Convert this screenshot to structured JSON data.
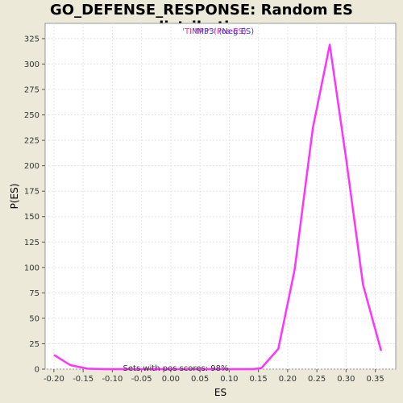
{
  "chart_data": {
    "type": "line",
    "title": "GO_DEFENSE_RESPONSE: Random ES distribution",
    "xlabel": "ES",
    "ylabel": "P(ES)",
    "xlim": [
      -0.215,
      0.385
    ],
    "ylim": [
      0,
      340
    ],
    "x_ticks": [
      "-0.20",
      "-0.15",
      "-0.10",
      "-0.05",
      "0.00",
      "0.05",
      "0.10",
      "0.15",
      "0.20",
      "0.25",
      "0.30",
      "0.35"
    ],
    "x_tick_values": [
      -0.2,
      -0.15,
      -0.1,
      -0.05,
      0.0,
      0.05,
      0.1,
      0.15,
      0.2,
      0.25,
      0.3,
      0.35
    ],
    "y_ticks": [
      "0",
      "25",
      "50",
      "75",
      "100",
      "125",
      "150",
      "175",
      "200",
      "225",
      "250",
      "275",
      "300",
      "325"
    ],
    "y_tick_values": [
      0,
      25,
      50,
      75,
      100,
      125,
      150,
      175,
      200,
      225,
      250,
      275,
      300,
      325
    ],
    "grid": true,
    "series": [
      {
        "color": "#ff33ff",
        "x": [
          -0.2,
          -0.172,
          -0.143,
          -0.115,
          -0.087,
          -0.058,
          -0.03,
          -0.002,
          0.027,
          0.055,
          0.083,
          0.112,
          0.14,
          0.155,
          0.184,
          0.212,
          0.243,
          0.272,
          0.3,
          0.329,
          0.36
        ],
        "values": [
          14,
          4,
          0.5,
          0,
          0,
          0,
          0,
          0,
          0,
          0,
          0,
          0,
          0,
          1,
          20,
          98,
          237,
          319,
          207,
          83,
          18
        ]
      }
    ],
    "legend": {
      "placement": "top-center",
      "entries": [
        {
          "text": "'TIMP3' (Pos ES)",
          "color": "#ff3377"
        },
        {
          "text": "'IMP3' (Neg ES)",
          "color": "#3333ff"
        }
      ]
    },
    "annotation": "Sets with pos scores: 98%"
  },
  "colors": {
    "background": "#ece9d8",
    "plot_area": "#ffffff",
    "grid": "#e4e4e4",
    "line": "#ff33ff"
  }
}
